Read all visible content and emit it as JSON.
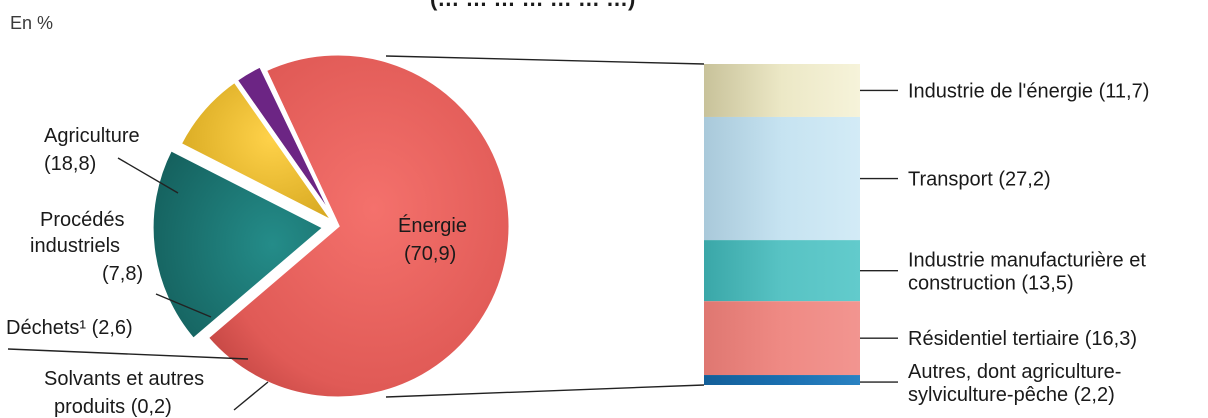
{
  "chart_data": [
    {
      "type": "pie",
      "unit_label": "En %",
      "slices": [
        {
          "label": "Énergie",
          "value": 70.9,
          "display": "(70,9)",
          "color": "#e2625e"
        },
        {
          "label": "Agriculture",
          "value": 18.8,
          "display": "(18,8)",
          "color": "#1b7a78",
          "exploded": true
        },
        {
          "label": "Procédés industriels",
          "value": 7.8,
          "display": "(7,8)",
          "color": "#f2c12e"
        },
        {
          "label": "Déchets¹",
          "value": 2.6,
          "display": "(2,6)",
          "color": "#6c2584"
        },
        {
          "label": "Solvants et autres produits",
          "value": 0.2,
          "display": "(0,2)",
          "color": "#c2188a"
        }
      ]
    },
    {
      "type": "bar",
      "stacked": true,
      "parent": "Énergie",
      "series": [
        {
          "name": "Industrie de l'énergie",
          "value": 11.7,
          "label": "Industrie de l'énergie (11,7)",
          "color": "#ece8c6"
        },
        {
          "name": "Transport",
          "value": 27.2,
          "label": "Transport (27,2)",
          "color": "#c6e3f1"
        },
        {
          "name": "Industrie manufacturière et construction",
          "value": 13.5,
          "label_lines": [
            "Industrie manufacturière et",
            "construction (13,5)"
          ],
          "color": "#58c3c4"
        },
        {
          "name": "Résidentiel tertiaire",
          "value": 16.3,
          "label": "Résidentiel tertiaire (16,3)",
          "color": "#ef8a84"
        },
        {
          "name": "Autres, dont agriculture-sylviculture-pêche",
          "value": 2.2,
          "label_lines": [
            "Autres, dont agriculture-",
            "sylviculture-pêche (2,2)"
          ],
          "color": "#1a6fb0"
        }
      ]
    }
  ],
  "labels": {
    "agriculture": [
      "Agriculture",
      "(18,8)"
    ],
    "procedes": [
      "Procédés",
      "industriels",
      "(7,8)"
    ],
    "dechets": "Déchets¹ (2,6)",
    "solvants": [
      "Solvants et autres",
      "produits (0,2)"
    ],
    "energie": [
      "Énergie",
      "(70,9)"
    ],
    "cut_title": "(… … … … … … …)"
  }
}
